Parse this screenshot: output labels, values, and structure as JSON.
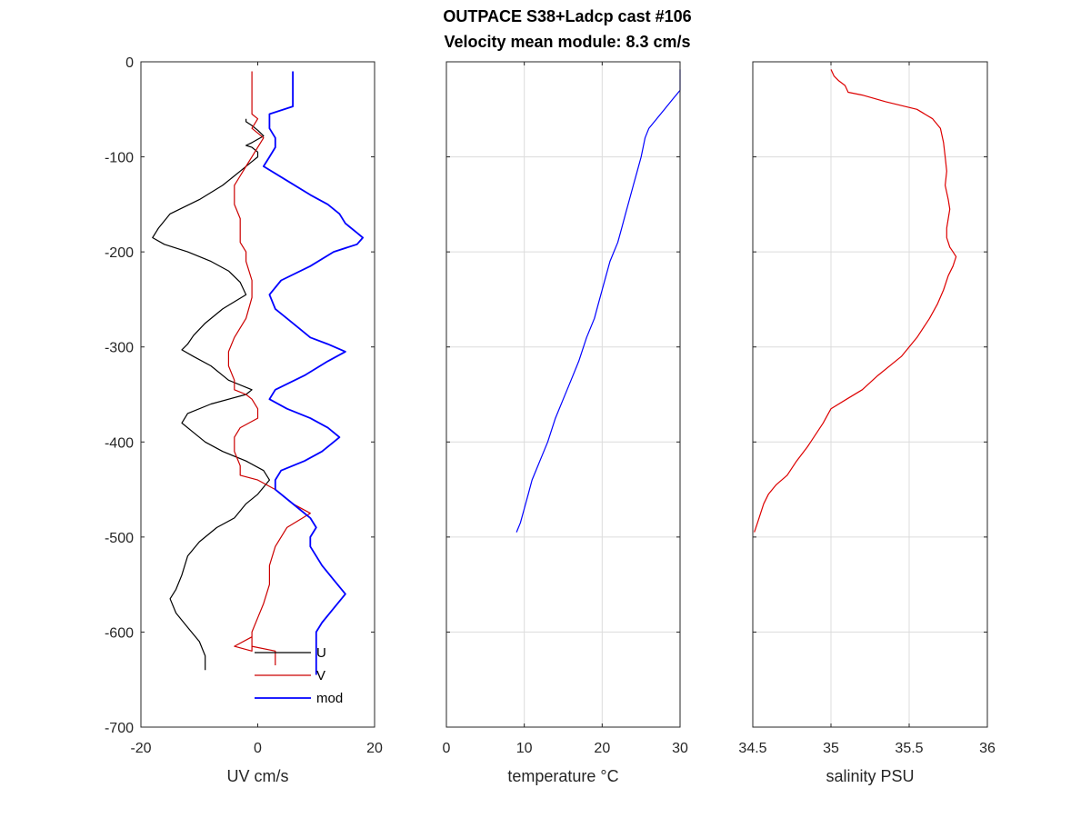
{
  "figure": {
    "title_lines": [
      "OUTPACE S38+Ladcp cast #106",
      "Velocity mean module:  8.3 cm/s"
    ]
  },
  "chart_data": [
    {
      "type": "line",
      "xlabel": "UV cm/s",
      "ylabel": "",
      "xlim": [
        -20,
        20
      ],
      "ylim": [
        -700,
        0
      ],
      "xticks": [
        "-20",
        "0",
        "20"
      ],
      "yticks": [
        "0",
        "-100",
        "-200",
        "-300",
        "-400",
        "-500",
        "-600",
        "-700"
      ],
      "grid": false,
      "legend": {
        "placement": "bottom-right",
        "entries": [
          "U",
          "V",
          "mod"
        ]
      },
      "series": [
        {
          "name": "U",
          "color": "#000000",
          "x": [
            -2,
            -2,
            -1,
            0,
            1,
            -1,
            -2,
            -1,
            0,
            0,
            -1,
            -3,
            -6,
            -10,
            -15,
            -17,
            -18,
            -16,
            -12,
            -8,
            -5,
            -3,
            -2,
            -6,
            -9,
            -11,
            -12,
            -13,
            -11,
            -8,
            -5,
            -1,
            -2,
            -8,
            -12,
            -13,
            -11,
            -9,
            -6,
            -2,
            1,
            2,
            0,
            -2,
            -4,
            -7,
            -10,
            -12,
            -13,
            -14,
            -15,
            -14,
            -12,
            -10,
            -9,
            -9
          ],
          "y": [
            -60,
            -63,
            -67,
            -72,
            -78,
            -85,
            -88,
            -90,
            -95,
            -100,
            -105,
            -115,
            -130,
            -145,
            -160,
            -175,
            -185,
            -192,
            -200,
            -210,
            -220,
            -232,
            -245,
            -260,
            -275,
            -288,
            -297,
            -303,
            -310,
            -320,
            -335,
            -345,
            -350,
            -360,
            -370,
            -380,
            -390,
            -400,
            -410,
            -420,
            -430,
            -440,
            -455,
            -465,
            -480,
            -490,
            -505,
            -520,
            -540,
            -555,
            -565,
            -580,
            -595,
            -610,
            -625,
            -640
          ]
        },
        {
          "name": "V",
          "color": "#cc0000",
          "x": [
            -1,
            -1,
            -1,
            0,
            -1,
            1,
            0,
            -1,
            -2,
            -3,
            -4,
            -4,
            -3,
            -3,
            -3,
            -2,
            -2,
            -1,
            -1,
            -2,
            -4,
            -5,
            -5,
            -4,
            -4,
            -2,
            -1,
            0,
            0,
            -3,
            -4,
            -4,
            -3,
            -3,
            0,
            3,
            6,
            9,
            5,
            3,
            2,
            2,
            1,
            0,
            -1,
            -1,
            -1,
            -1,
            -4,
            -1,
            -1,
            3,
            3,
            3
          ],
          "y": [
            -10,
            -40,
            -55,
            -60,
            -70,
            -80,
            -90,
            -100,
            -110,
            -120,
            -130,
            -150,
            -165,
            -180,
            -190,
            -200,
            -210,
            -230,
            -248,
            -270,
            -290,
            -305,
            -320,
            -335,
            -345,
            -350,
            -355,
            -365,
            -375,
            -385,
            -395,
            -410,
            -425,
            -435,
            -440,
            -450,
            -465,
            -475,
            -490,
            -510,
            -530,
            -550,
            -570,
            -585,
            -600,
            -615,
            -615,
            -605,
            -615,
            -620,
            -615,
            -620,
            -620,
            -635
          ]
        },
        {
          "name": "mod",
          "color": "#0000ff",
          "x": [
            6,
            6,
            6,
            2,
            2,
            3,
            3,
            2,
            1,
            5,
            9,
            12,
            14,
            15,
            16,
            17,
            18,
            17,
            13,
            9,
            4,
            2,
            3,
            5,
            7,
            9,
            12,
            15,
            12,
            8,
            3,
            2,
            5,
            9,
            12,
            13,
            14,
            13,
            11,
            8,
            4,
            3,
            3,
            5,
            7,
            9,
            10,
            9,
            9,
            10,
            11,
            13,
            15,
            13,
            11,
            10,
            10,
            10,
            10
          ],
          "y": [
            -10,
            -30,
            -47,
            -55,
            -70,
            -80,
            -90,
            -100,
            -110,
            -125,
            -140,
            -150,
            -160,
            -170,
            -175,
            -180,
            -185,
            -192,
            -200,
            -215,
            -230,
            -245,
            -260,
            -270,
            -280,
            -290,
            -297,
            -305,
            -315,
            -330,
            -345,
            -355,
            -365,
            -375,
            -385,
            -390,
            -395,
            -400,
            -410,
            -420,
            -430,
            -440,
            -450,
            -460,
            -470,
            -480,
            -490,
            -500,
            -510,
            -520,
            -530,
            -545,
            -560,
            -575,
            -590,
            -600,
            -615,
            -630,
            -645
          ]
        }
      ]
    },
    {
      "type": "line",
      "xlabel": "temperature °C",
      "ylabel": "",
      "xlim": [
        0,
        30
      ],
      "ylim": [
        -700,
        0
      ],
      "xticks": [
        "0",
        "10",
        "20",
        "30"
      ],
      "grid": true,
      "series": [
        {
          "name": "",
          "color": "#0000ff",
          "x": [
            30,
            30,
            30,
            29,
            28,
            27,
            26,
            25.5,
            25,
            24.5,
            24,
            23.5,
            23,
            22.5,
            22,
            21.5,
            21,
            20.5,
            20,
            19.5,
            19,
            18,
            17,
            16,
            15,
            14,
            13,
            12,
            11,
            10.5,
            10,
            9.5,
            9
          ],
          "y": [
            -8,
            -20,
            -30,
            -40,
            -50,
            -60,
            -70,
            -80,
            -100,
            -115,
            -130,
            -145,
            -160,
            -175,
            -190,
            -200,
            -210,
            -225,
            -240,
            -255,
            -270,
            -290,
            -315,
            -335,
            -355,
            -375,
            -400,
            -420,
            -440,
            -455,
            -470,
            -485,
            -495
          ]
        }
      ]
    },
    {
      "type": "line",
      "xlabel": "salinity PSU",
      "ylabel": "",
      "xlim": [
        34.5,
        36
      ],
      "ylim": [
        -700,
        0
      ],
      "xticks": [
        "34.5",
        "35",
        "35.5",
        "36"
      ],
      "grid": true,
      "series": [
        {
          "name": "",
          "color": "#dd0000",
          "x": [
            35.0,
            35.02,
            35.05,
            35.09,
            35.11,
            35.2,
            35.35,
            35.55,
            35.65,
            35.7,
            35.72,
            35.73,
            35.74,
            35.73,
            35.75,
            35.76,
            35.75,
            35.74,
            35.74,
            35.75,
            35.76,
            35.78,
            35.8,
            35.78,
            35.75,
            35.72,
            35.68,
            35.63,
            35.55,
            35.45,
            35.3,
            35.2,
            35.1,
            35.0,
            34.95,
            34.85,
            34.78,
            34.72,
            34.65,
            34.6,
            34.57,
            34.55,
            34.53,
            34.51
          ],
          "y": [
            -8,
            -15,
            -20,
            -25,
            -32,
            -35,
            -42,
            -50,
            -60,
            -70,
            -85,
            -100,
            -115,
            -130,
            -145,
            -155,
            -165,
            -175,
            -185,
            -190,
            -195,
            -200,
            -205,
            -215,
            -225,
            -240,
            -255,
            -270,
            -290,
            -310,
            -330,
            -345,
            -355,
            -365,
            -380,
            -405,
            -420,
            -435,
            -445,
            -455,
            -465,
            -475,
            -485,
            -495
          ]
        }
      ]
    }
  ]
}
